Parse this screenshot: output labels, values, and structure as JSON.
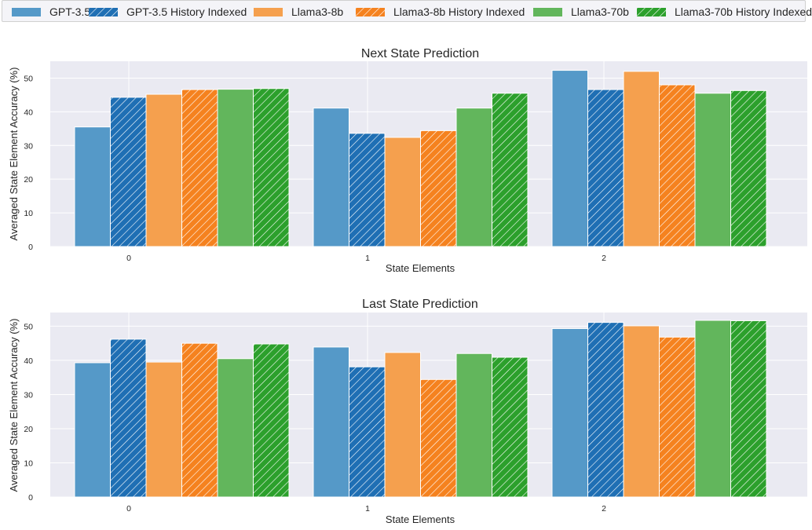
{
  "legend": {
    "items": [
      {
        "label": "GPT-3.5",
        "color": "#5599c8",
        "hatch": false
      },
      {
        "label": "GPT-3.5 History Indexed",
        "color": "#1f6fb4",
        "hatch": true
      },
      {
        "label": "Llama3-8b",
        "color": "#f5a04e",
        "hatch": false
      },
      {
        "label": "Llama3-8b History Indexed",
        "color": "#f5821f",
        "hatch": true
      },
      {
        "label": "Llama3-70b",
        "color": "#62b65c",
        "hatch": false
      },
      {
        "label": "Llama3-70b History Indexed",
        "color": "#2ca02c",
        "hatch": true
      }
    ]
  },
  "chart_data": [
    {
      "type": "bar",
      "title": "Next State Prediction",
      "xlabel": "State Elements",
      "ylabel": "Averaged State Element Accuracy (%)",
      "categories": [
        "0",
        "1",
        "2"
      ],
      "ylim": [
        0,
        55
      ],
      "yticks": [
        0,
        10,
        20,
        30,
        40,
        50
      ],
      "grid": true,
      "legend_position": "top",
      "series": [
        {
          "name": "GPT-3.5",
          "values": [
            35.5,
            41.1,
            52.3
          ]
        },
        {
          "name": "GPT-3.5 History Indexed",
          "values": [
            44.3,
            33.6,
            46.6
          ]
        },
        {
          "name": "Llama3-8b",
          "values": [
            45.2,
            32.4,
            52.0
          ]
        },
        {
          "name": "Llama3-8b History Indexed",
          "values": [
            46.6,
            34.4,
            48.0
          ]
        },
        {
          "name": "Llama3-70b",
          "values": [
            46.7,
            41.1,
            45.5
          ]
        },
        {
          "name": "Llama3-70b History Indexed",
          "values": [
            46.9,
            45.5,
            46.3
          ]
        }
      ]
    },
    {
      "type": "bar",
      "title": "Last State Prediction",
      "xlabel": "State Elements",
      "ylabel": "Averaged State Element Accuracy (%)",
      "categories": [
        "0",
        "1",
        "2"
      ],
      "ylim": [
        0,
        54
      ],
      "yticks": [
        0,
        10,
        20,
        30,
        40,
        50
      ],
      "grid": true,
      "legend_position": "top",
      "series": [
        {
          "name": "GPT-3.5",
          "values": [
            39.3,
            43.9,
            49.3
          ]
        },
        {
          "name": "GPT-3.5 History Indexed",
          "values": [
            46.2,
            38.1,
            51.1
          ]
        },
        {
          "name": "Llama3-8b",
          "values": [
            39.5,
            42.3,
            50.1
          ]
        },
        {
          "name": "Llama3-8b History Indexed",
          "values": [
            45.0,
            34.4,
            46.8
          ]
        },
        {
          "name": "Llama3-70b",
          "values": [
            40.5,
            42.0,
            51.7
          ]
        },
        {
          "name": "Llama3-70b History Indexed",
          "values": [
            44.8,
            40.9,
            51.6
          ]
        }
      ]
    }
  ]
}
